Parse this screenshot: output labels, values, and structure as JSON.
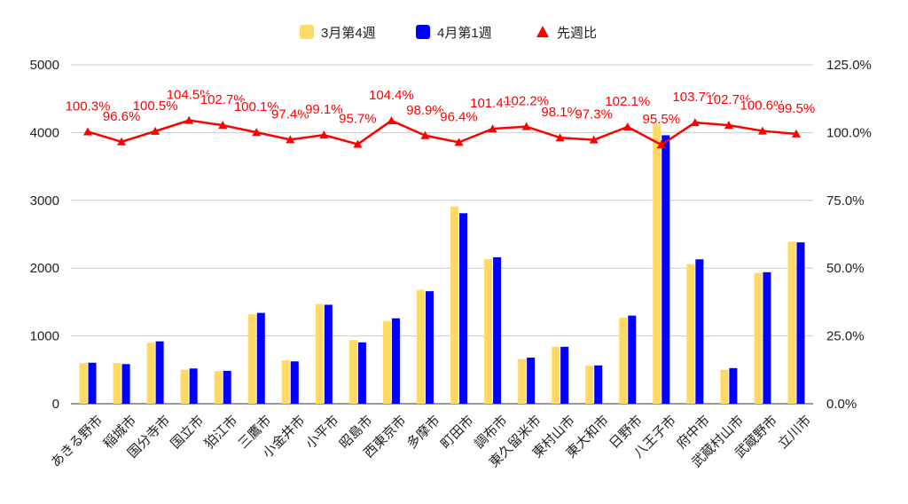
{
  "chart_data": {
    "type": "bar",
    "categories": [
      "あきる野市",
      "稲城市",
      "国分寺市",
      "国立市",
      "狛江市",
      "三鷹市",
      "小金井市",
      "小平市",
      "昭島市",
      "西東京市",
      "多摩市",
      "町田市",
      "調布市",
      "東久留米市",
      "東村山市",
      "東大和市",
      "日野市",
      "八王子市",
      "府中市",
      "武蔵村山市",
      "武蔵野市",
      "立川市"
    ],
    "series": [
      {
        "name": "3月第4週",
        "type": "bar",
        "axis": "left",
        "color": "#FFD966",
        "values": [
          600,
          600,
          900,
          500,
          480,
          1320,
          640,
          1470,
          940,
          1220,
          1680,
          2910,
          2130,
          660,
          840,
          560,
          1270,
          4150,
          2060,
          500,
          1930,
          2390
        ]
      },
      {
        "name": "4月第1週",
        "type": "bar",
        "axis": "left",
        "color": "#0000FF",
        "values": [
          605,
          585,
          920,
          520,
          485,
          1340,
          625,
          1460,
          905,
          1260,
          1660,
          2810,
          2160,
          680,
          840,
          565,
          1300,
          3960,
          2130,
          525,
          1940,
          2380
        ]
      },
      {
        "name": "先週比",
        "type": "line",
        "axis": "right",
        "color": "#FF0000",
        "marker": "triangle",
        "values": [
          100.3,
          96.6,
          100.5,
          104.5,
          102.7,
          100.1,
          97.4,
          99.1,
          95.7,
          104.4,
          98.9,
          96.4,
          101.4,
          102.2,
          98.1,
          97.3,
          102.1,
          95.5,
          103.7,
          102.7,
          100.6,
          99.5
        ],
        "labels": [
          "100.3%",
          "96.6%",
          "100.5%",
          "104.5%",
          "102.7%",
          "100.1%",
          "97.4%",
          "99.1%",
          "95.7%",
          "104.4%",
          "98.9%",
          "96.4%",
          "101.4%",
          "102.2%",
          "98.1%",
          "97.3%",
          "102.1%",
          "95.5%",
          "103.7%",
          "102.7%",
          "100.6%",
          "99.5%"
        ]
      }
    ],
    "y_left": {
      "min": 0,
      "max": 5000,
      "ticks": [
        "0",
        "1000",
        "2000",
        "3000",
        "4000",
        "5000"
      ]
    },
    "y_right": {
      "min": 0,
      "max": 125,
      "ticks": [
        "0.0%",
        "25.0%",
        "50.0%",
        "75.0%",
        "100.0%",
        "125.0%"
      ]
    },
    "legend": {
      "position": "top",
      "items": [
        "3月第4週",
        "4月第1週",
        "先週比"
      ]
    },
    "grid": true
  }
}
